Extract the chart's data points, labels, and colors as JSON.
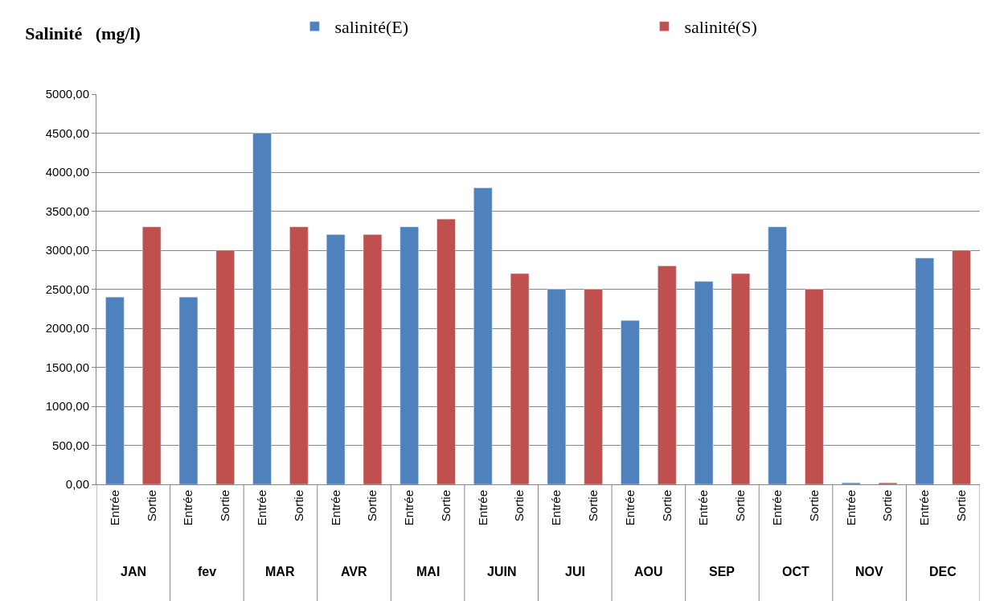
{
  "chart_data": {
    "type": "bar",
    "title": "Salinité   (mg/l)",
    "categories": [
      "Entrée",
      "Sortie",
      "Entrée",
      "Sortie",
      "Entrée",
      "Sortie",
      "Entrée",
      "Sortie",
      "Entrée",
      "Sortie",
      "Entrée",
      "Sortie",
      "Entrée",
      "Sortie",
      "Entrée",
      "Sortie",
      "Entrée",
      "Sortie",
      "Entrée",
      "Sortie",
      "Entrée",
      "Sortie",
      "Entrée",
      "Sortie"
    ],
    "series": [
      {
        "name": "salinité(E)",
        "color": "#4f81bd",
        "values": [
          2400,
          null,
          2400,
          null,
          4500,
          null,
          3200,
          null,
          3300,
          null,
          3800,
          null,
          2500,
          null,
          2100,
          null,
          2600,
          null,
          3300,
          null,
          20,
          null,
          2900,
          null
        ]
      },
      {
        "name": "salinité(S)",
        "color": "#c0504d",
        "values": [
          null,
          3300,
          null,
          3000,
          null,
          3300,
          null,
          3200,
          null,
          3400,
          null,
          2700,
          null,
          2500,
          null,
          2800,
          null,
          2700,
          null,
          2500,
          null,
          20,
          null,
          3000
        ]
      }
    ],
    "annotations": [
      "JAN",
      "fev",
      "MAR",
      "AVR",
      "MAI",
      "JUIN",
      "JUI",
      "AOU",
      "SEP",
      "OCT",
      "NOV",
      "DEC"
    ],
    "ylim": [
      0,
      5000
    ],
    "yticks": [
      {
        "value": 0,
        "label": "0,00"
      },
      {
        "value": 500,
        "label": "500,00"
      },
      {
        "value": 1000,
        "label": "1000,00"
      },
      {
        "value": 1500,
        "label": "1500,00"
      },
      {
        "value": 2000,
        "label": "2000,00"
      },
      {
        "value": 2500,
        "label": "2500,00"
      },
      {
        "value": 3000,
        "label": "3000,00"
      },
      {
        "value": 3500,
        "label": "3500,00"
      },
      {
        "value": 4000,
        "label": "4000,00"
      },
      {
        "value": 4500,
        "label": "4500,00"
      },
      {
        "value": 5000,
        "label": "5000,00"
      }
    ],
    "grid": "y",
    "legend": "top"
  }
}
